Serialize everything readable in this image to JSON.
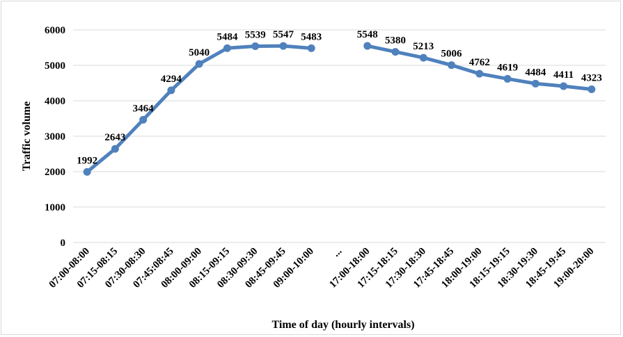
{
  "chart_data": {
    "type": "line",
    "title": "",
    "xlabel": "Time of day (hourly intervals)",
    "ylabel": "Traffic volume",
    "ylim": [
      0,
      6000
    ],
    "yticks": [
      0,
      1000,
      2000,
      3000,
      4000,
      5000,
      6000
    ],
    "grid": "horizontal",
    "legend": "none",
    "color": "#4f81bd",
    "categories": [
      "07:00-08:00",
      "07:15-08:15",
      "07:30-08:30",
      "07:45:08:45",
      "08:00-09:00",
      "08:15-09:15",
      "08:30-09:30",
      "08:45-09:45",
      "09:00-10:00",
      "...",
      "17:00-18:00",
      "17:15-18:15",
      "17:30-18:30",
      "17:45-18:45",
      "18:00-19:00",
      "18:15-19:15",
      "18:30-19:30",
      "18:45-19:45",
      "19:00-20:00"
    ],
    "values": [
      1992,
      2643,
      3464,
      4294,
      5040,
      5484,
      5539,
      5547,
      5483,
      null,
      5548,
      5380,
      5213,
      5006,
      4762,
      4619,
      4484,
      4411,
      4323
    ]
  }
}
